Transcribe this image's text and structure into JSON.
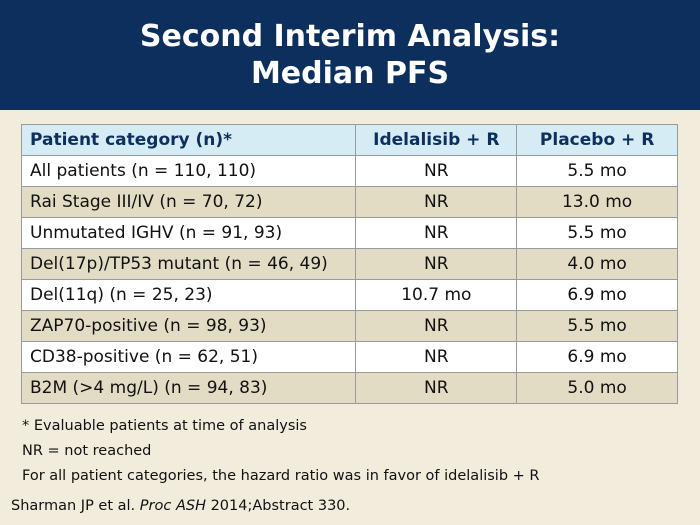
{
  "title": {
    "line1": "Second Interim Analysis:",
    "line2": "Median PFS"
  },
  "table": {
    "headers": [
      "Patient category (n)*",
      "Idelalisib + R",
      "Placebo + R"
    ],
    "rows": [
      [
        "All patients  (n = 110, 110)",
        "NR",
        "5.5 mo"
      ],
      [
        "Rai Stage III/IV (n = 70, 72)",
        "NR",
        "13.0 mo"
      ],
      [
        "Unmutated IGHV (n = 91, 93)",
        "NR",
        "5.5 mo"
      ],
      [
        "Del(17p)/TP53 mutant (n = 46, 49)",
        "NR",
        "4.0 mo"
      ],
      [
        "Del(11q) (n = 25, 23)",
        "10.7 mo",
        "6.9 mo"
      ],
      [
        "ZAP70-positive (n = 98, 93)",
        "NR",
        "5.5 mo"
      ],
      [
        "CD38-positive (n = 62, 51)",
        "NR",
        "6.9 mo"
      ],
      [
        "B2M (>4 mg/L) (n = 94, 83)",
        "NR",
        "5.0 mo"
      ]
    ]
  },
  "notes": [
    "* Evaluable patients at time of analysis",
    "NR = not reached",
    "For all patient categories, the hazard ratio was in favor of idelalisib + R"
  ],
  "citation": {
    "prefix": "Sharman JP et al. ",
    "journal": "Proc ASH",
    "suffix": " 2014;Abstract 330."
  },
  "colors": {
    "title_bar": "#0c2f5e",
    "header_row": "#d6ecf4",
    "stripe": "#e3dcc4",
    "background": "#f1ecdc"
  }
}
